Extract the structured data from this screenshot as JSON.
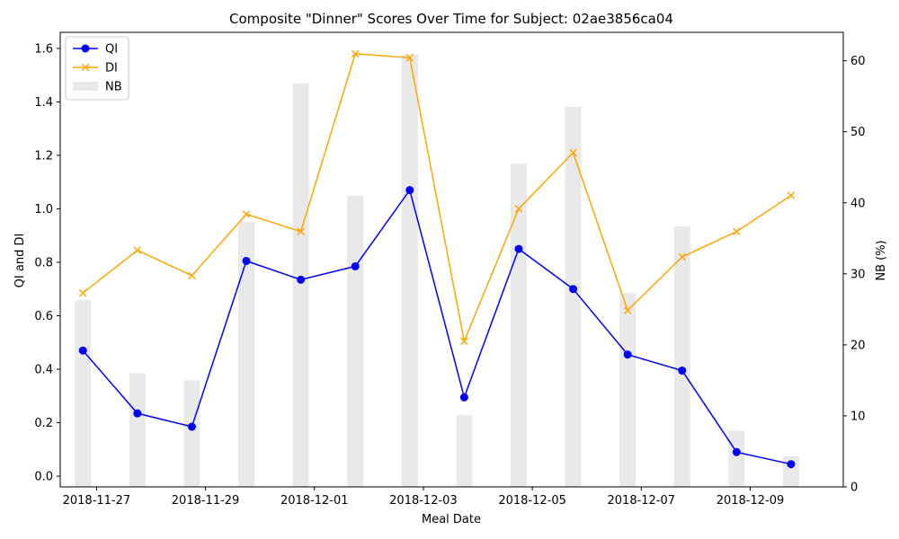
{
  "chart_data": {
    "type": "line",
    "title": "Composite \"Dinner\" Scores Over Time for Subject: 02ae3856ca04",
    "xlabel": "Meal Date",
    "ylabel_left": "QI and DI",
    "ylabel_right": "NB (%)",
    "x": [
      "2018-11-26T18:00",
      "2018-11-27T18:00",
      "2018-11-28T18:00",
      "2018-11-29T18:00",
      "2018-11-30T18:00",
      "2018-12-01T18:00",
      "2018-12-02T18:00",
      "2018-12-03T18:00",
      "2018-12-04T18:00",
      "2018-12-05T18:00",
      "2018-12-06T18:00",
      "2018-12-07T18:00",
      "2018-12-08T18:00",
      "2018-12-09T18:00"
    ],
    "x_ticks": [
      "2018-11-27",
      "2018-11-29",
      "2018-12-01",
      "2018-12-03",
      "2018-12-05",
      "2018-12-07",
      "2018-12-09"
    ],
    "xlim": [
      "2018-11-26T08:00",
      "2018-12-10T17:00"
    ],
    "ylim_left": [
      -0.04,
      1.66
    ],
    "yticks_left": [
      0.0,
      0.2,
      0.4,
      0.6,
      0.8,
      1.0,
      1.2,
      1.4,
      1.6
    ],
    "ylim_right": [
      0,
      64
    ],
    "yticks_right": [
      0,
      10,
      20,
      30,
      40,
      50,
      60
    ],
    "series": [
      {
        "name": "QI",
        "axis": "left",
        "type": "line",
        "color": "#0000ff",
        "marker": "circle",
        "values": [
          0.47,
          0.235,
          0.185,
          0.805,
          0.735,
          0.785,
          1.07,
          0.295,
          0.85,
          0.7,
          0.455,
          0.395,
          0.09,
          0.045
        ]
      },
      {
        "name": "DI",
        "axis": "left",
        "type": "line",
        "color": "#ffa500",
        "marker": "x",
        "values": [
          0.685,
          0.845,
          0.75,
          0.98,
          0.915,
          1.58,
          1.565,
          0.505,
          1.0,
          1.21,
          0.62,
          0.82,
          0.915,
          1.05
        ]
      },
      {
        "name": "NB",
        "axis": "right",
        "type": "bar",
        "color": "#d3d3d3",
        "values": [
          26.3,
          16.0,
          15.0,
          37.3,
          56.8,
          41.0,
          60.9,
          10.1,
          45.5,
          53.5,
          27.3,
          36.7,
          7.9,
          4.3
        ]
      }
    ],
    "legend": {
      "position": "top-left",
      "entries": [
        "QI",
        "DI",
        "NB"
      ]
    },
    "grid": false
  }
}
